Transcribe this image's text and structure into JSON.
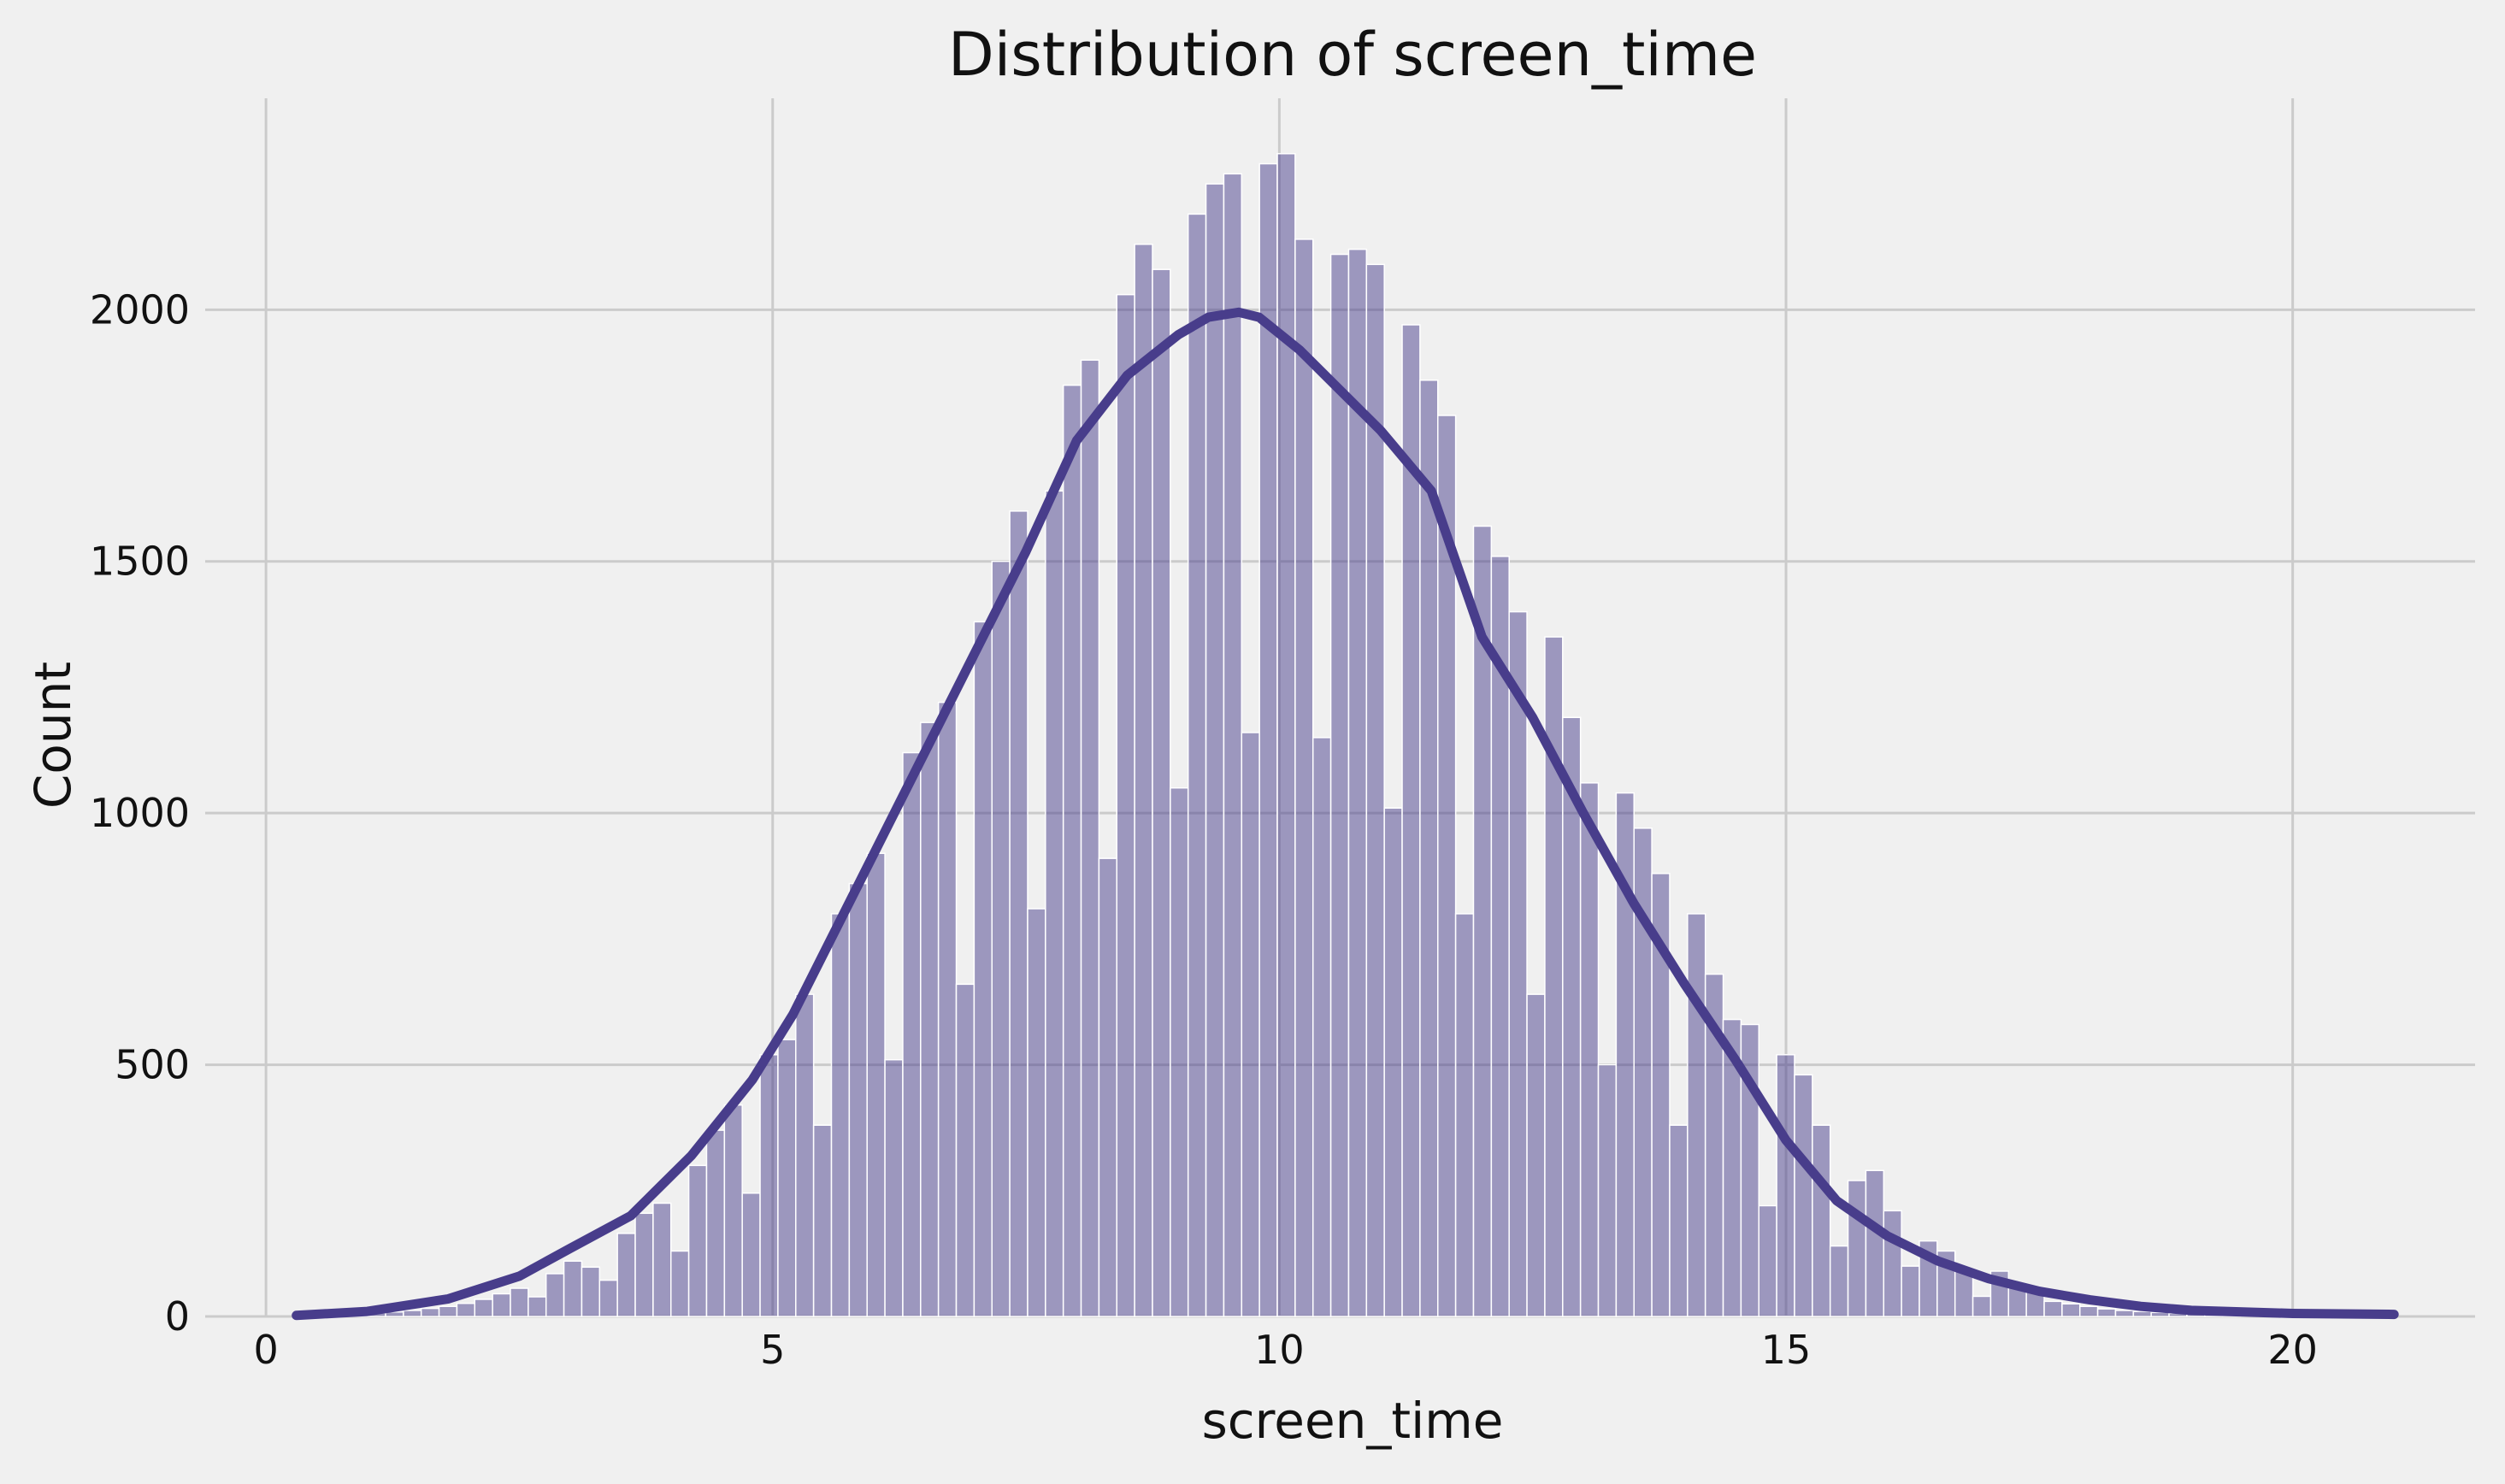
{
  "chart_data": {
    "type": "bar",
    "subtype": "histogram with kde line",
    "title": "Distribution of screen_time",
    "xlabel": "screen_time",
    "ylabel": "Count",
    "xlim": [
      -0.6,
      21.8
    ],
    "ylim": [
      0,
      2420
    ],
    "xticks": [
      0,
      5,
      10,
      15,
      20
    ],
    "yticks": [
      0,
      500,
      1000,
      1500,
      2000
    ],
    "grid": true,
    "colors": {
      "background": "#f0f0f0",
      "grid": "#cbcbcb",
      "bar_fill": "#483d8b",
      "bar_fill_opacity": 0.5,
      "bar_edge": "#ffffff",
      "kde_line": "#483d8b",
      "text": "#111111"
    },
    "bins": {
      "start": 0.3,
      "width": 0.176
    },
    "values": [
      2,
      3,
      4,
      5,
      7,
      9,
      12,
      16,
      20,
      26,
      34,
      45,
      56,
      39,
      85,
      110,
      98,
      72,
      165,
      205,
      225,
      130,
      300,
      370,
      420,
      245,
      520,
      550,
      640,
      380,
      800,
      860,
      920,
      510,
      1120,
      1180,
      1220,
      660,
      1380,
      1500,
      1600,
      810,
      1640,
      1850,
      1900,
      910,
      2030,
      2130,
      2080,
      1050,
      2190,
      2250,
      2270,
      1160,
      2290,
      2310,
      2140,
      1150,
      2110,
      2120,
      2090,
      1010,
      1970,
      1860,
      1790,
      800,
      1570,
      1510,
      1400,
      640,
      1350,
      1190,
      1060,
      500,
      1040,
      970,
      880,
      380,
      800,
      680,
      590,
      580,
      220,
      520,
      480,
      380,
      140,
      270,
      290,
      210,
      100,
      150,
      130,
      90,
      40,
      90,
      60,
      50,
      30,
      25,
      20,
      15,
      12,
      10,
      8,
      6,
      5,
      4,
      3,
      2,
      2,
      1,
      1,
      1,
      1,
      1
    ],
    "kde": {
      "x": [
        0.3,
        1.0,
        1.8,
        2.5,
        3.0,
        3.6,
        4.2,
        4.8,
        5.2,
        5.6,
        6.0,
        6.5,
        7.0,
        7.5,
        8.0,
        8.5,
        9.0,
        9.3,
        9.6,
        9.8,
        10.2,
        10.6,
        11.0,
        11.5,
        12.0,
        12.5,
        13.0,
        13.5,
        14.0,
        14.5,
        15.0,
        15.5,
        16.0,
        16.5,
        17.0,
        17.5,
        18.0,
        18.5,
        19.0,
        20.0,
        21.0
      ],
      "y": [
        2,
        10,
        35,
        80,
        135,
        200,
        320,
        470,
        600,
        760,
        920,
        1120,
        1320,
        1520,
        1740,
        1870,
        1950,
        1985,
        1995,
        1985,
        1920,
        1840,
        1760,
        1640,
        1350,
        1190,
        1000,
        820,
        660,
        510,
        350,
        230,
        160,
        110,
        75,
        50,
        33,
        20,
        12,
        6,
        4
      ]
    }
  }
}
